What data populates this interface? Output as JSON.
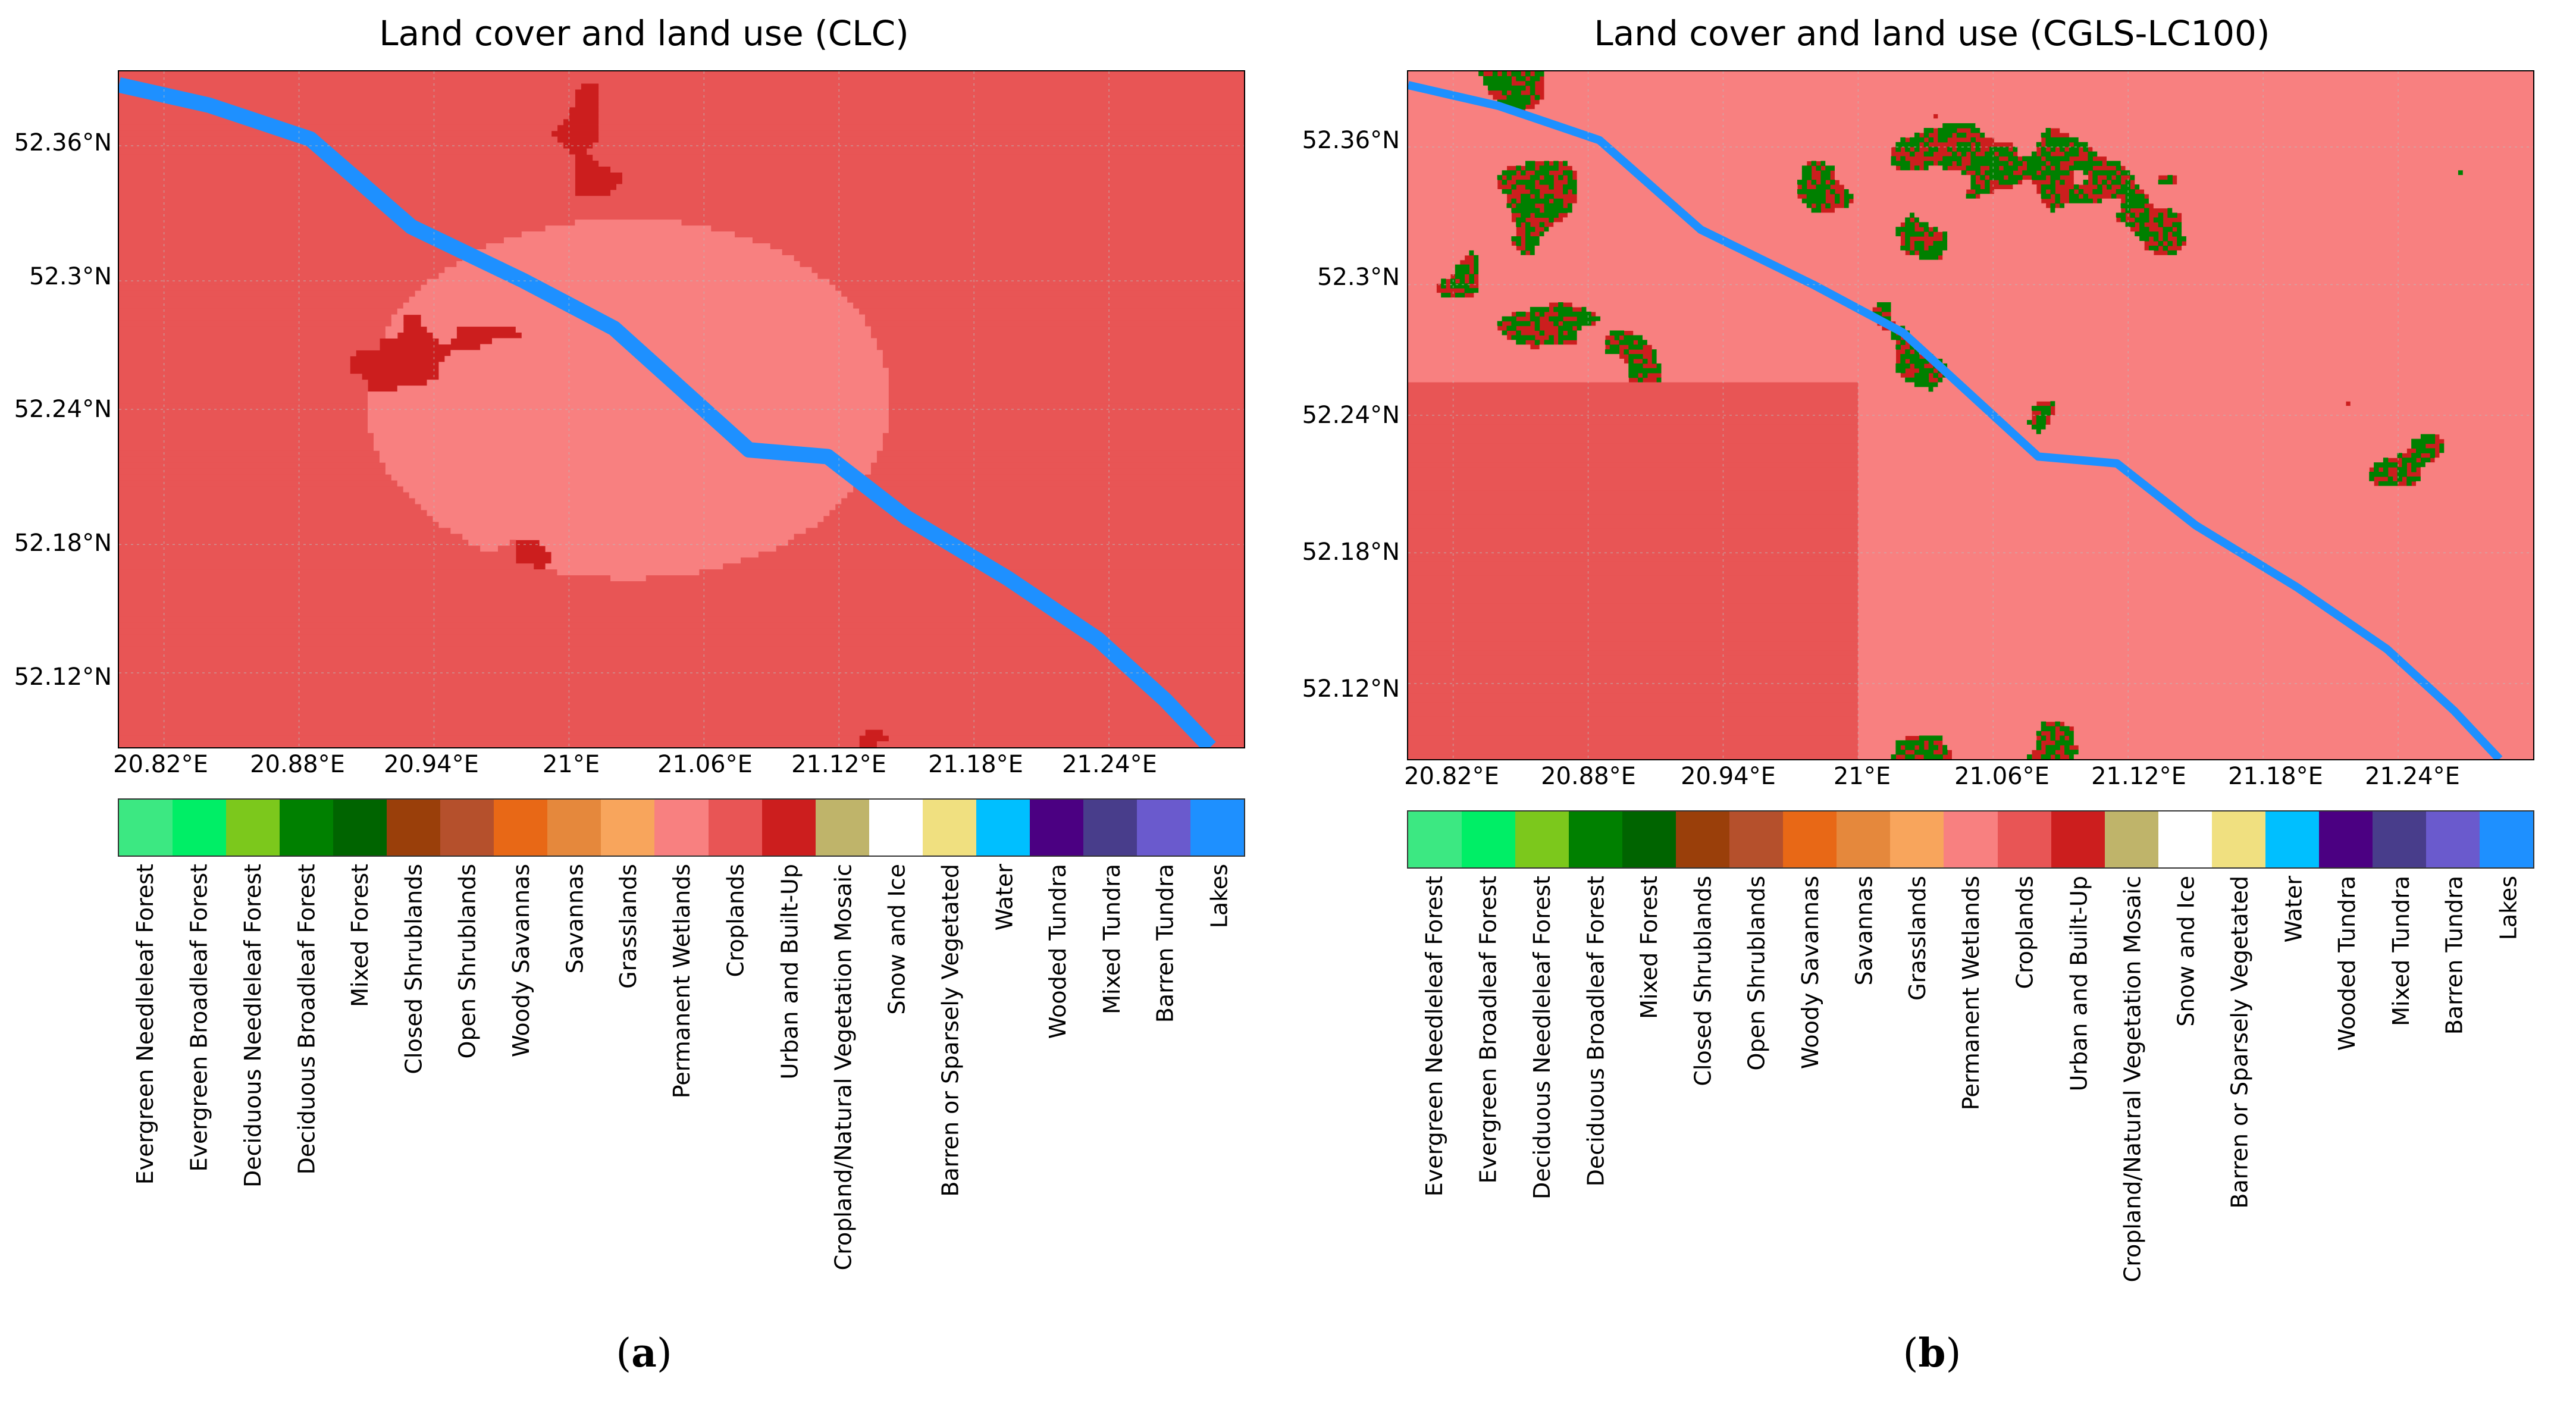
{
  "figure": {
    "panels": [
      {
        "id": "a",
        "title": "Land cover and land use (CLC)",
        "caption_open": "(",
        "caption_letter": "a",
        "caption_close": ")"
      },
      {
        "id": "b",
        "title": "Land cover and land use (CGLS-LC100)",
        "caption_open": "(",
        "caption_letter": "b",
        "caption_close": ")"
      }
    ],
    "lat_ticks": [
      "52.36°N",
      "52.3°N",
      "52.24°N",
      "52.18°N",
      "52.12°N"
    ],
    "lon_ticks": [
      "20.82°E",
      "20.88°E",
      "20.94°E",
      "21°E",
      "21.06°E",
      "21.12°E",
      "21.18°E",
      "21.24°E"
    ],
    "classes": [
      {
        "name": "Evergreen Needleleaf Forest",
        "color": "#3ce882"
      },
      {
        "name": "Evergreen Broadleaf Forest",
        "color": "#00ee66"
      },
      {
        "name": "Deciduous Needleleaf Forest",
        "color": "#7cc81c"
      },
      {
        "name": "Deciduous Broadleaf Forest",
        "color": "#008000"
      },
      {
        "name": "Mixed Forest",
        "color": "#006400"
      },
      {
        "name": "Closed Shrublands",
        "color": "#9a3f0a"
      },
      {
        "name": "Open Shrublands",
        "color": "#b5502c"
      },
      {
        "name": "Woody Savannas",
        "color": "#e86816"
      },
      {
        "name": "Savannas",
        "color": "#e5883c"
      },
      {
        "name": "Grasslands",
        "color": "#f8a55c"
      },
      {
        "name": "Permanent Wetlands",
        "color": "#f88080"
      },
      {
        "name": "Croplands",
        "color": "#e85555"
      },
      {
        "name": "Urban and Built-Up",
        "color": "#cc1e1e"
      },
      {
        "name": "Cropland/Natural Vegetation Mosaic",
        "color": "#bfb46a"
      },
      {
        "name": "Snow and Ice",
        "color": "#ffffff"
      },
      {
        "name": "Barren or Sparsely Vegetated",
        "color": "#f0e080"
      },
      {
        "name": "Water",
        "color": "#00bfff"
      },
      {
        "name": "Wooded Tundra",
        "color": "#4b0082"
      },
      {
        "name": "Mixed Tundra",
        "color": "#483d8b"
      },
      {
        "name": "Barren Tundra",
        "color": "#6a5acd"
      },
      {
        "name": "Lakes",
        "color": "#1e90ff"
      }
    ],
    "river_color": "#1e90ff"
  }
}
